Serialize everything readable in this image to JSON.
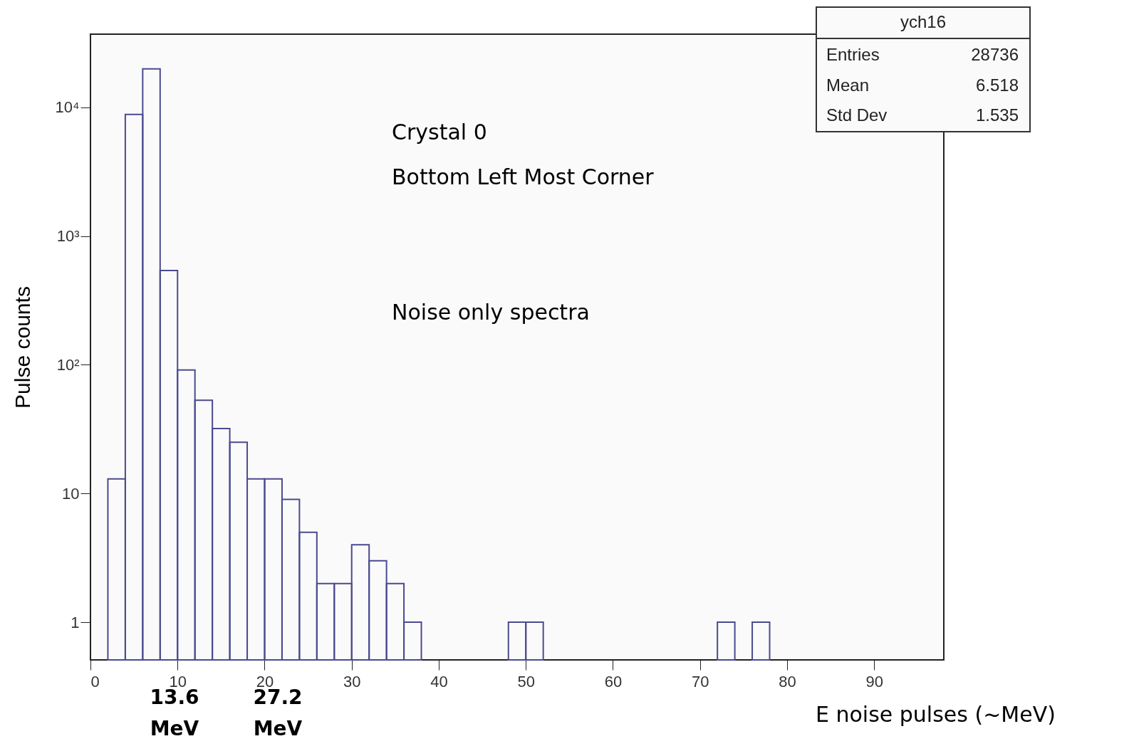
{
  "chart_data": {
    "type": "histogram",
    "xlabel": "E noise pulses (~MeV)",
    "ylabel": "Pulse counts",
    "color": "#4b4a8f",
    "log": true,
    "grid": false,
    "bins": [
      0,
      2,
      4,
      6,
      8,
      10,
      12,
      14,
      16,
      18,
      20,
      22,
      24,
      26,
      28,
      30,
      32,
      34,
      36,
      38,
      40,
      42,
      44,
      46,
      48,
      50,
      52,
      54,
      56,
      58,
      60,
      62,
      64,
      66,
      68,
      70,
      72,
      74,
      76,
      78,
      80,
      82,
      84,
      86,
      88,
      90,
      92,
      94,
      96,
      98
    ],
    "values": [
      null,
      13,
      8800,
      19900,
      540,
      91,
      53,
      32,
      25,
      13,
      13,
      9,
      5,
      2,
      2,
      4,
      3,
      2,
      1,
      null,
      null,
      null,
      null,
      null,
      1,
      1,
      null,
      null,
      null,
      null,
      null,
      null,
      null,
      null,
      null,
      null,
      1,
      null,
      1,
      null,
      null,
      null,
      null,
      null,
      null,
      null,
      null,
      null,
      null
    ],
    "xlim": [
      0,
      98
    ],
    "ylim": [
      0.51,
      37000
    ],
    "xticks": [
      0,
      10,
      20,
      30,
      40,
      50,
      60,
      70,
      80,
      90
    ],
    "yticks": [
      1,
      10,
      {
        "value": 100,
        "label": "10²"
      },
      {
        "value": 1000,
        "label": "10³"
      },
      {
        "value": 10000,
        "label": "10⁴"
      }
    ],
    "annotations": [
      "Crystal 0",
      "Bottom Left  Most Corner",
      "Noise only spectra",
      "ych16",
      "Entries",
      "28736",
      "Mean",
      "6.518",
      "Std Dev",
      "1.535",
      "13.6 MeV",
      "27.2 MeV"
    ]
  }
}
